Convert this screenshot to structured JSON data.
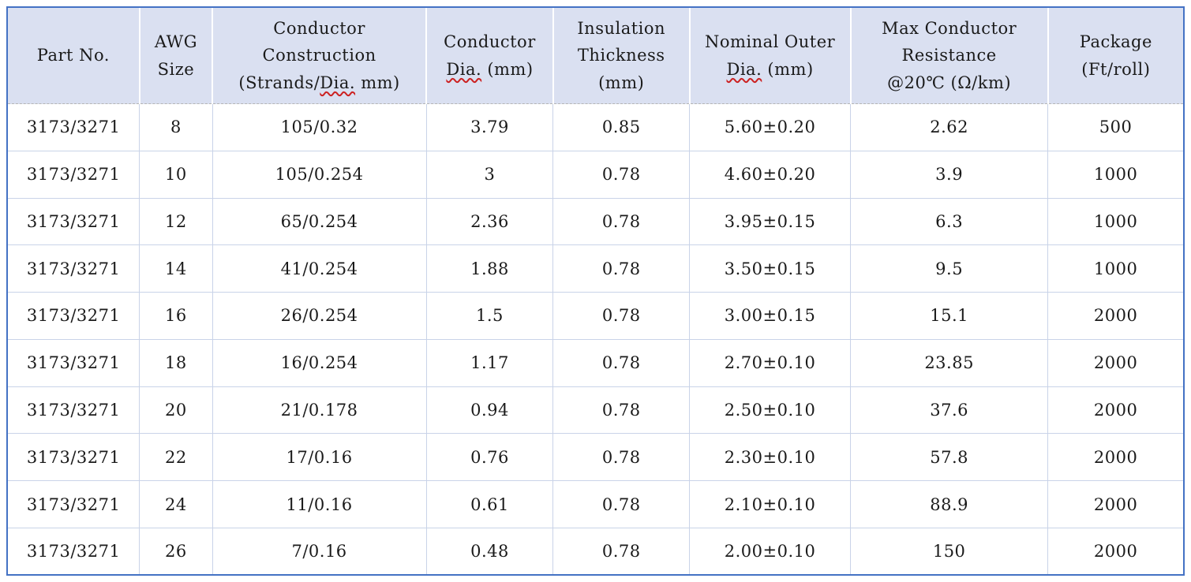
{
  "colors": {
    "header_background": "#dae0f1",
    "outer_border": "#4472c4",
    "grid_line": "#c9d3e8",
    "header_cell_divider": "#ffffff",
    "header_dashed_divider": "#b5b5b5",
    "spellcheck_underline": "#cc2222",
    "text": "#1a1a1a"
  },
  "header": {
    "part_no": "Part No.",
    "awg_size": {
      "line1": "AWG",
      "line2": "Size"
    },
    "conductor_construction": {
      "line1": "Conductor",
      "line2": "Construction",
      "line3_pre": "(Strands/",
      "line3_wavy": "Dia.",
      "line3_post": " mm)"
    },
    "conductor_dia": {
      "line1": "Conductor",
      "line2_wavy": "Dia.",
      "line2_post": " (mm)"
    },
    "insulation_thickness": {
      "line1": "Insulation",
      "line2": "Thickness",
      "line3": "(mm)"
    },
    "nominal_outer_dia": {
      "line1": "Nominal Outer",
      "line2_wavy": "Dia.",
      "line2_post": " (mm)"
    },
    "max_resistance": {
      "line1": "Max Conductor",
      "line2": "Resistance",
      "line3": "@20℃ (Ω/km)"
    },
    "package": {
      "line1": "Package",
      "line2": "(Ft/roll)"
    }
  },
  "chart_data": {
    "type": "table",
    "columns": [
      "Part No.",
      "AWG Size",
      "Conductor Construction (Strands/Dia. mm)",
      "Conductor Dia. (mm)",
      "Insulation Thickness (mm)",
      "Nominal Outer Dia. (mm)",
      "Max Conductor Resistance @20℃ (Ω/km)",
      "Package (Ft/roll)"
    ],
    "rows": [
      [
        "3173/3271",
        "8",
        "105/0.32",
        "3.79",
        "0.85",
        "5.60±0.20",
        "2.62",
        "500"
      ],
      [
        "3173/3271",
        "10",
        "105/0.254",
        "3",
        "0.78",
        "4.60±0.20",
        "3.9",
        "1000"
      ],
      [
        "3173/3271",
        "12",
        "65/0.254",
        "2.36",
        "0.78",
        "3.95±0.15",
        "6.3",
        "1000"
      ],
      [
        "3173/3271",
        "14",
        "41/0.254",
        "1.88",
        "0.78",
        "3.50±0.15",
        "9.5",
        "1000"
      ],
      [
        "3173/3271",
        "16",
        "26/0.254",
        "1.5",
        "0.78",
        "3.00±0.15",
        "15.1",
        "2000"
      ],
      [
        "3173/3271",
        "18",
        "16/0.254",
        "1.17",
        "0.78",
        "2.70±0.10",
        "23.85",
        "2000"
      ],
      [
        "3173/3271",
        "20",
        "21/0.178",
        "0.94",
        "0.78",
        "2.50±0.10",
        "37.6",
        "2000"
      ],
      [
        "3173/3271",
        "22",
        "17/0.16",
        "0.76",
        "0.78",
        "2.30±0.10",
        "57.8",
        "2000"
      ],
      [
        "3173/3271",
        "24",
        "11/0.16",
        "0.61",
        "0.78",
        "2.10±0.10",
        "88.9",
        "2000"
      ],
      [
        "3173/3271",
        "26",
        "7/0.16",
        "0.48",
        "0.78",
        "2.00±0.10",
        "150",
        "2000"
      ]
    ]
  }
}
